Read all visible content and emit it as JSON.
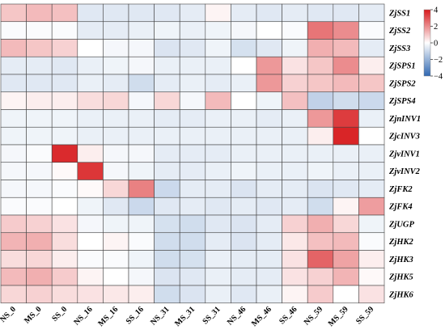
{
  "chart_data": {
    "type": "heatmap",
    "title": "",
    "xlabel": "",
    "ylabel": "",
    "columns": [
      "NS_0",
      "MS_0",
      "SS_0",
      "NS_16",
      "MS_16",
      "SS_16",
      "NS_31",
      "MS_31",
      "SS_31",
      "NS_46",
      "MS_46",
      "SS_46",
      "NS_59",
      "MS_59",
      "SS_59"
    ],
    "rows": [
      "ZjSS1",
      "ZjSS2",
      "ZjSS3",
      "ZjSPS1",
      "ZjSPS2",
      "ZjSPS4",
      "ZjnINV1",
      "ZjcINV3",
      "ZjvINV1",
      "ZjvINV2",
      "ZjFK2",
      "ZjFK4",
      "ZjUGP",
      "ZjHK2",
      "ZjHK3",
      "ZjHK5",
      "ZjHK6"
    ],
    "values": [
      [
        1.0,
        1.2,
        1.1,
        -0.6,
        -0.6,
        -0.6,
        -0.6,
        -0.5,
        0.2,
        -0.5,
        -0.6,
        -0.5,
        -0.6,
        -0.6,
        -0.5
      ],
      [
        -0.1,
        -0.1,
        -0.1,
        -0.5,
        -0.5,
        -0.4,
        -0.3,
        -0.4,
        -0.3,
        -0.2,
        0.0,
        -0.1,
        2.4,
        2.0,
        -0.1
      ],
      [
        1.2,
        1.0,
        0.8,
        0.0,
        -0.2,
        -0.2,
        -0.7,
        -0.6,
        -0.3,
        -0.8,
        -0.6,
        -0.3,
        1.4,
        1.2,
        -0.5
      ],
      [
        -0.5,
        -0.5,
        -0.6,
        -0.4,
        -0.3,
        -0.2,
        -0.4,
        -0.4,
        -0.4,
        0.0,
        1.8,
        0.5,
        1.0,
        2.0,
        0.3
      ],
      [
        -0.6,
        -0.6,
        -0.6,
        -0.4,
        -0.5,
        -0.9,
        -0.5,
        -0.4,
        -0.5,
        -0.4,
        1.8,
        0.8,
        1.0,
        1.2,
        1.0
      ],
      [
        0.2,
        0.3,
        0.3,
        0.6,
        0.7,
        -0.2,
        0.7,
        -0.2,
        1.2,
        0.0,
        -0.3,
        1.1,
        -1.2,
        -0.9,
        -1.0
      ],
      [
        -0.3,
        -0.3,
        -0.3,
        -0.4,
        -0.4,
        -0.4,
        -0.5,
        -0.5,
        -0.4,
        -0.4,
        -0.5,
        -0.4,
        1.8,
        3.4,
        -0.4
      ],
      [
        -0.3,
        -0.3,
        -0.3,
        -0.4,
        -0.4,
        -0.4,
        -0.4,
        -0.4,
        -0.4,
        -0.4,
        -0.4,
        -0.4,
        0.3,
        3.8,
        0.0
      ],
      [
        -0.2,
        -0.1,
        3.7,
        0.3,
        -0.2,
        -0.2,
        -0.5,
        -0.5,
        -0.5,
        -0.4,
        -0.4,
        -0.4,
        -0.4,
        -0.4,
        -0.4
      ],
      [
        -0.2,
        -0.2,
        0.1,
        3.5,
        -0.2,
        -0.3,
        -0.5,
        -0.5,
        -0.4,
        -0.3,
        -0.4,
        -0.4,
        -0.3,
        -0.4,
        -0.4
      ],
      [
        -0.2,
        -0.2,
        -0.1,
        0.1,
        0.7,
        2.2,
        -1.0,
        -0.5,
        -0.5,
        -0.7,
        -0.5,
        -0.5,
        -0.7,
        -0.6,
        -0.5
      ],
      [
        -0.1,
        -0.1,
        0.0,
        -0.3,
        -0.6,
        -1.0,
        -0.6,
        -0.5,
        -0.6,
        -0.5,
        -0.6,
        -0.5,
        -0.9,
        0.2,
        1.7
      ],
      [
        0.9,
        0.8,
        0.5,
        -0.2,
        -0.3,
        -0.3,
        -0.8,
        -0.9,
        -0.6,
        -0.7,
        -0.5,
        0.8,
        1.4,
        0.7,
        -0.3
      ],
      [
        1.3,
        1.4,
        0.6,
        0.0,
        0.2,
        -0.1,
        -0.9,
        -0.9,
        -0.5,
        -0.7,
        -0.5,
        0.4,
        1.1,
        1.2,
        -0.1
      ],
      [
        0.6,
        0.7,
        0.3,
        -0.1,
        -0.1,
        -0.3,
        -0.9,
        -0.8,
        -0.4,
        -0.5,
        -0.5,
        0.5,
        2.7,
        1.6,
        0.3
      ],
      [
        1.2,
        1.4,
        0.9,
        0.2,
        0.0,
        -0.2,
        -0.7,
        -0.6,
        -0.4,
        -0.5,
        -0.5,
        0.5,
        0.8,
        1.3,
        0.1
      ],
      [
        0.7,
        0.8,
        0.6,
        0.5,
        0.4,
        0.3,
        -0.9,
        -0.7,
        -0.4,
        -0.6,
        -0.4,
        0.2,
        0.9,
        0.0,
        0.5
      ]
    ],
    "colorbar": {
      "min": -4,
      "max": 4,
      "ticks": [
        4,
        2,
        0,
        -2,
        -4
      ],
      "low_color": "#2f67b1",
      "mid_color": "#ffffff",
      "high_color": "#d7191c"
    },
    "legend_position": "top-right",
    "grid": true
  }
}
